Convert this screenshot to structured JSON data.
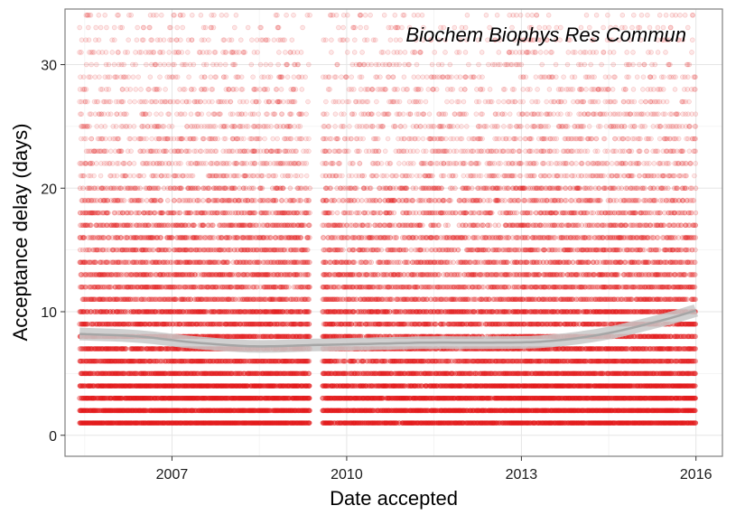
{
  "chart_data": {
    "type": "scatter",
    "annotation": "Biochem Biophys Res Commun",
    "xlabel": "Date accepted",
    "ylabel": "Acceptance delay (days)",
    "x_ticks": [
      "2007",
      "2010",
      "2013",
      "2016"
    ],
    "y_ticks": [
      0,
      10,
      20,
      30
    ],
    "xlim": [
      "2005-03-01",
      "2016-06-15"
    ],
    "ylim": [
      -1.7,
      34.5
    ],
    "grid": true,
    "point_color": "#e41a1c",
    "trend_color": "#a6a6a6",
    "data_gap": [
      "2009-05-15",
      "2009-08-01"
    ],
    "x_range": [
      "2005-06-01",
      "2016-01-01"
    ],
    "y_range_days": [
      1,
      34
    ],
    "trend": {
      "x": [
        "2005-06-01",
        "2006-06-01",
        "2007-06-01",
        "2008-06-01",
        "2009-06-01",
        "2010-06-01",
        "2011-06-01",
        "2012-06-01",
        "2013-06-01",
        "2014-06-01",
        "2015-06-01",
        "2016-01-01"
      ],
      "y": [
        8.2,
        8.0,
        7.5,
        7.2,
        7.3,
        7.4,
        7.5,
        7.5,
        7.6,
        8.2,
        9.3,
        10.1
      ]
    }
  }
}
